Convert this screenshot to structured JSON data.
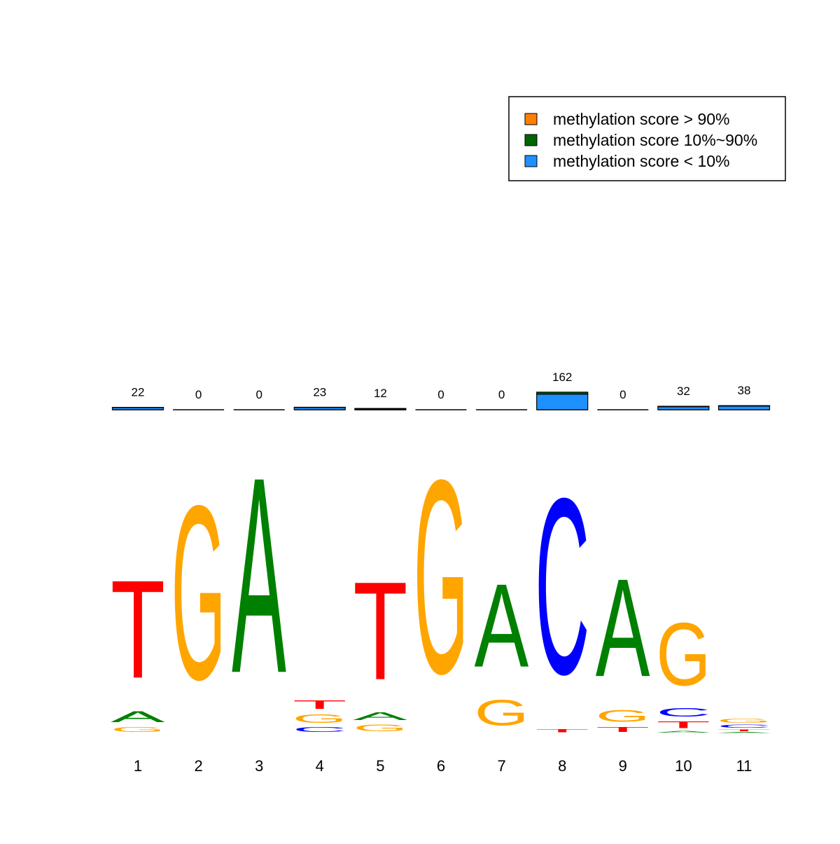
{
  "chart_data": {
    "type": "sequence-logo",
    "letter_colors": {
      "A": "#008000",
      "C": "#0000ff",
      "G": "#ffa500",
      "T": "#ff0000"
    },
    "positions": [
      {
        "label": "1",
        "count": "22",
        "letters": [
          {
            "letter": "G",
            "height": 0.05
          },
          {
            "letter": "A",
            "height": 0.11
          },
          {
            "letter": "T",
            "height": 1.0
          }
        ]
      },
      {
        "label": "2",
        "count": "0",
        "letters": [
          {
            "letter": "G",
            "height": 1.78
          }
        ]
      },
      {
        "label": "3",
        "count": "0",
        "letters": [
          {
            "letter": "A",
            "height": 2.0
          }
        ]
      },
      {
        "label": "4",
        "count": "23",
        "letters": [
          {
            "letter": "C",
            "height": 0.05
          },
          {
            "letter": "G",
            "height": 0.09
          },
          {
            "letter": "T",
            "height": 0.09
          }
        ]
      },
      {
        "label": "5",
        "count": "12",
        "letters": [
          {
            "letter": "G",
            "height": 0.07
          },
          {
            "letter": "A",
            "height": 0.08
          },
          {
            "letter": "T",
            "height": 1.0
          }
        ]
      },
      {
        "label": "6",
        "count": "0",
        "letters": [
          {
            "letter": "G",
            "height": 1.98
          }
        ]
      },
      {
        "label": "7",
        "count": "0",
        "letters": [
          {
            "letter": "G",
            "height": 0.26
          },
          {
            "letter": "A",
            "height": 0.85
          }
        ]
      },
      {
        "label": "8",
        "count": "162",
        "letters": [
          {
            "letter": "T",
            "height": 0.03
          },
          {
            "letter": "C",
            "height": 1.8
          }
        ]
      },
      {
        "label": "9",
        "count": "0",
        "letters": [
          {
            "letter": "T",
            "height": 0.05
          },
          {
            "letter": "G",
            "height": 0.12
          },
          {
            "letter": "A",
            "height": 1.0
          }
        ]
      },
      {
        "label": "10",
        "count": "32",
        "letters": [
          {
            "letter": "A",
            "height": 0.02
          },
          {
            "letter": "T",
            "height": 0.07
          },
          {
            "letter": "C",
            "height": 0.09
          },
          {
            "letter": "G",
            "height": 0.64
          }
        ]
      },
      {
        "label": "11",
        "count": "38",
        "letters": [
          {
            "letter": "A",
            "height": 0.01
          },
          {
            "letter": "T",
            "height": 0.02
          },
          {
            "letter": "C",
            "height": 0.03
          },
          {
            "letter": "G",
            "height": 0.04
          }
        ]
      }
    ],
    "series": [
      {
        "name": "methylation score < 10%",
        "color": "#1e90ff",
        "values": [
          20,
          0,
          0,
          21,
          6,
          0,
          0,
          144,
          0,
          28,
          34
        ]
      },
      {
        "name": "methylation score 10%~90%",
        "color": "#006400",
        "values": [
          2,
          0,
          0,
          2,
          6,
          0,
          0,
          18,
          0,
          4,
          4
        ]
      },
      {
        "name": "methylation score > 90%",
        "color": "#ff7f00",
        "values": [
          0,
          0,
          0,
          0,
          0,
          0,
          0,
          0,
          0,
          0,
          0
        ]
      }
    ]
  }
}
